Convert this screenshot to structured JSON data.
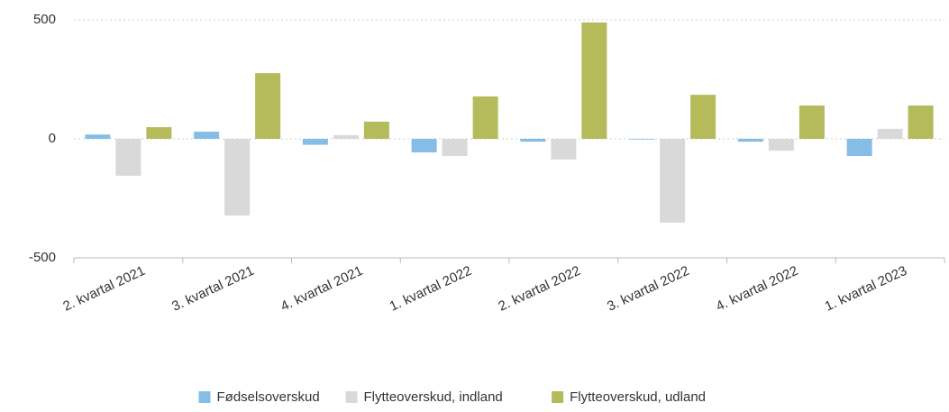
{
  "chart_data": {
    "type": "bar",
    "categories": [
      "2. kvartal 2021",
      "3. kvartal 2021",
      "4. kvartal 2021",
      "1. kvartal 2022",
      "2. kvartal 2022",
      "3. kvartal 2022",
      "4. kvartal 2022",
      "1. kvartal 2023"
    ],
    "series": [
      {
        "name": "Fødselsoverskud",
        "color": "#85bde6",
        "values": [
          18,
          30,
          -25,
          -57,
          -12,
          -3,
          -12,
          -72
        ]
      },
      {
        "name": "Flytteoverskud, indland",
        "color": "#d9d9d9",
        "values": [
          -155,
          -322,
          15,
          -72,
          -87,
          -352,
          -50,
          42
        ]
      },
      {
        "name": "Flytteoverskud, udland",
        "color": "#b5bb5a",
        "values": [
          49,
          276,
          72,
          178,
          489,
          185,
          140,
          140
        ]
      }
    ],
    "ylim": [
      -500,
      500
    ],
    "yticks": [
      -500,
      0,
      500
    ],
    "grid": true,
    "legend": "bottom"
  }
}
